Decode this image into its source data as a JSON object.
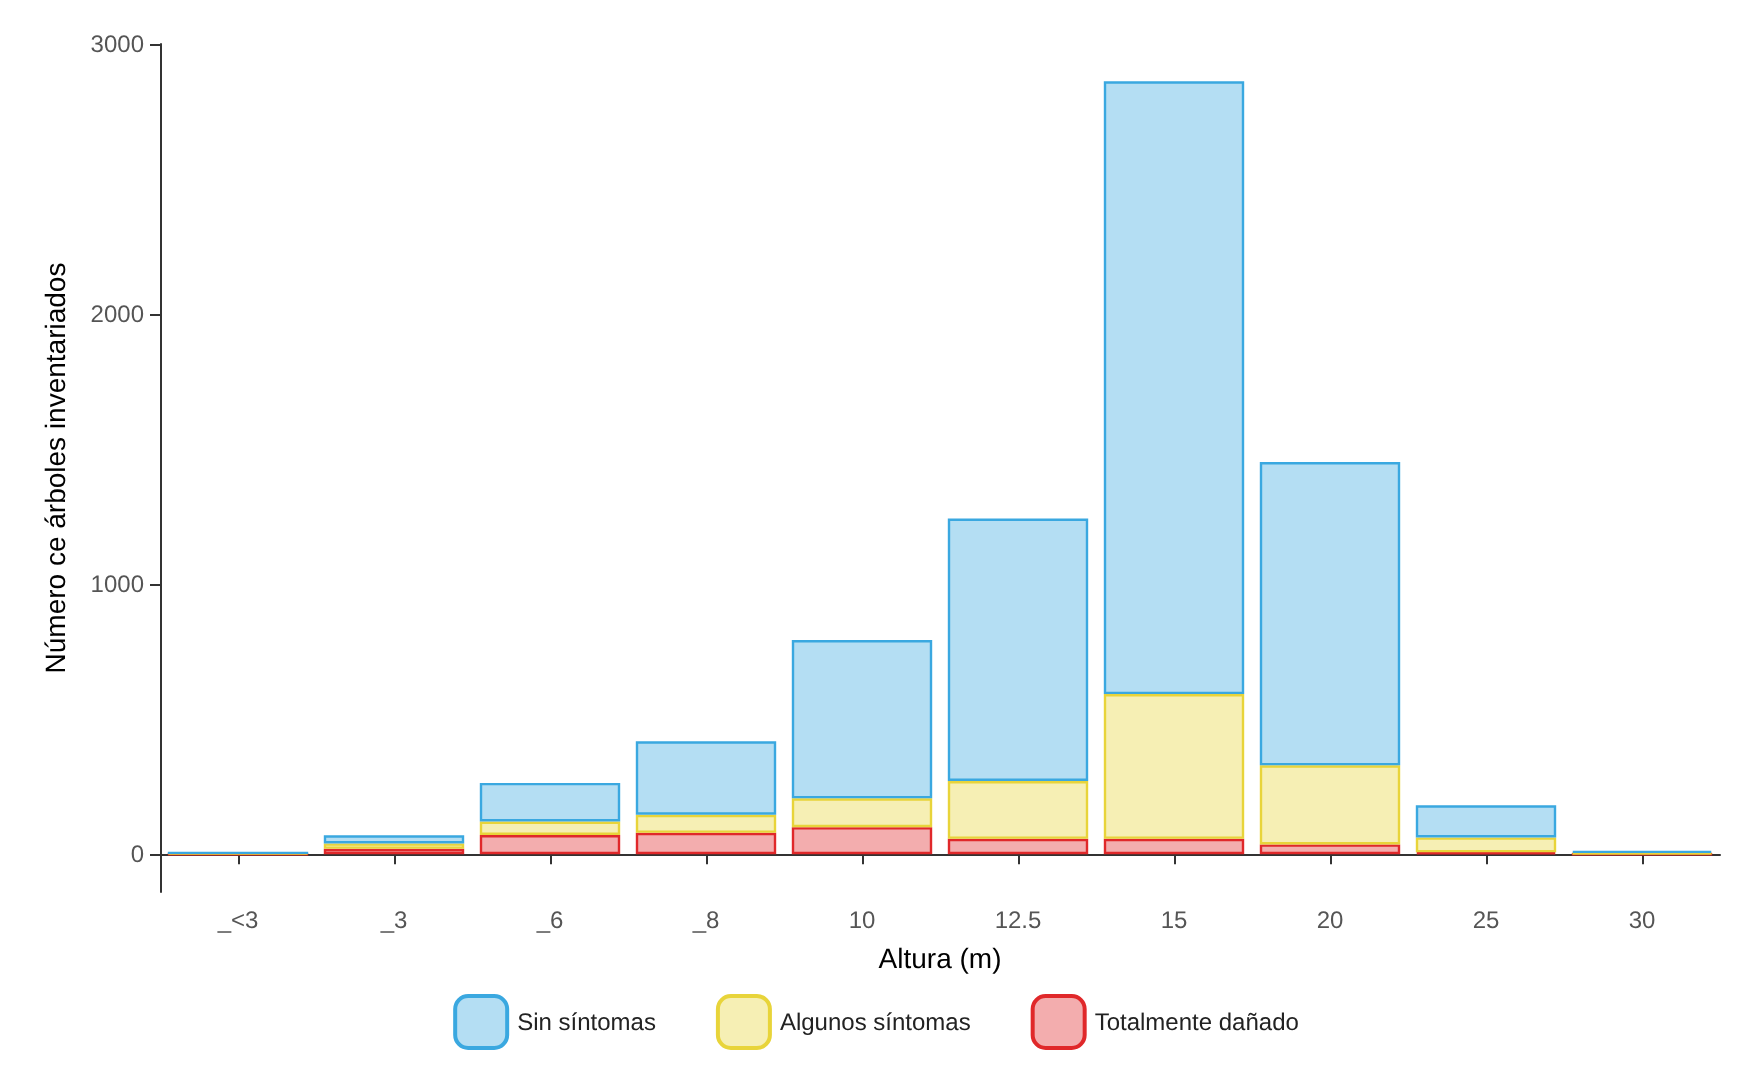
{
  "chart_data": {
    "type": "bar",
    "stacked": true,
    "xlabel": "Altura (m)",
    "ylabel": "Número ce árboles inventariados",
    "categories": [
      "_<3",
      "_3",
      "_6",
      "_8",
      "10",
      "12.5",
      "15",
      "20",
      "25",
      "30"
    ],
    "series": [
      {
        "name": "Totalmente dañado",
        "color": "#e0282a",
        "values": [
          0,
          20,
          71,
          79,
          100,
          57,
          57,
          36,
          7,
          0
        ]
      },
      {
        "name": "Algunos síntomas",
        "color": "#e8d43a",
        "values": [
          5,
          20,
          50,
          67,
          107,
          214,
          536,
          293,
          55,
          5
        ]
      },
      {
        "name": "Sin síntomas",
        "color": "#3aa8e0",
        "values": [
          0,
          30,
          143,
          272,
          586,
          972,
          2269,
          1123,
          119,
          7
        ]
      }
    ],
    "ylim": [
      -140,
      3000
    ],
    "yticks": [
      0,
      1000,
      2000,
      3000
    ],
    "grid": false,
    "legend": "bottom"
  }
}
